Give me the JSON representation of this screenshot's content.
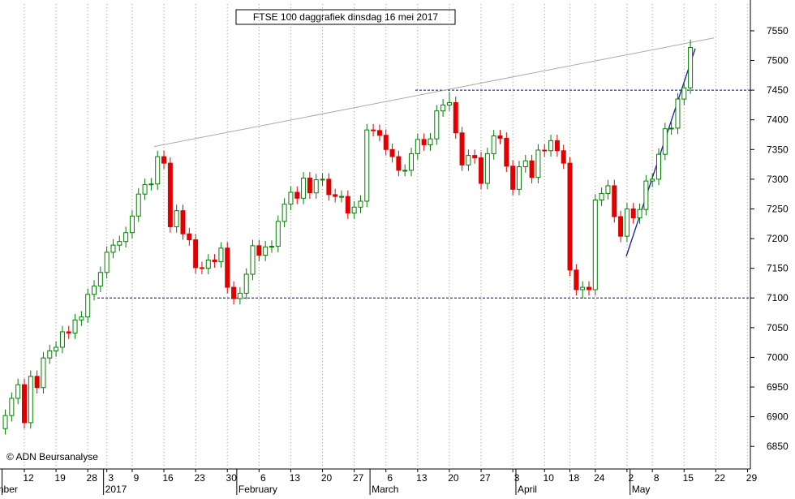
{
  "chart_data": {
    "type": "candlestick",
    "title": "FTSE 100 daggrafiek dinsdag 16 mei 2017",
    "copyright": "© ADN Beursanalyse",
    "categories": [
      null,
      null,
      null,
      "12",
      null,
      null,
      null,
      null,
      "19",
      null,
      null,
      null,
      null,
      "28",
      null,
      null,
      "3",
      null,
      null,
      null,
      "9",
      null,
      null,
      null,
      null,
      "16",
      null,
      null,
      null,
      null,
      "23",
      null,
      null,
      null,
      null,
      "30",
      null,
      null,
      null,
      null,
      "6",
      null,
      null,
      null,
      null,
      "13",
      null,
      null,
      null,
      null,
      "20",
      null,
      null,
      null,
      null,
      "27",
      null,
      null,
      null,
      null,
      "6",
      null,
      null,
      null,
      null,
      "13",
      null,
      null,
      null,
      null,
      "20",
      null,
      null,
      null,
      null,
      "27",
      null,
      null,
      null,
      null,
      "3",
      null,
      null,
      null,
      null,
      "10",
      null,
      null,
      null,
      "18",
      null,
      null,
      null,
      "24",
      null,
      null,
      null,
      null,
      "2",
      null,
      null,
      null,
      "8",
      null,
      null,
      null,
      null,
      "15",
      null,
      null,
      null,
      null,
      "22",
      null,
      null,
      null,
      null,
      "29"
    ],
    "months": [
      "mber",
      null,
      null,
      null,
      null,
      null,
      null,
      null,
      null,
      null,
      null,
      null,
      null,
      null,
      null,
      null,
      "2017",
      null,
      null,
      null,
      null,
      null,
      null,
      null,
      null,
      null,
      null,
      null,
      null,
      null,
      null,
      null,
      null,
      null,
      null,
      null,
      null,
      "February",
      null,
      null,
      null,
      null,
      null,
      null,
      null,
      null,
      null,
      null,
      null,
      null,
      null,
      null,
      null,
      null,
      null,
      null,
      null,
      null,
      "March",
      null,
      null,
      null,
      null,
      null,
      null,
      null,
      null,
      null,
      null,
      null,
      null,
      null,
      null,
      null,
      null,
      null,
      null,
      null,
      null,
      null,
      null,
      "April",
      null,
      null,
      null,
      null,
      null,
      null,
      null,
      null,
      null,
      null,
      null,
      null,
      null,
      null,
      null,
      null,
      null,
      "May",
      null,
      null,
      null,
      null,
      null,
      null,
      null,
      null,
      null,
      null,
      null,
      null,
      null,
      null,
      null,
      null,
      null,
      null,
      null
    ],
    "open": [
      6880,
      6902,
      6931,
      6954,
      6890,
      6968,
      6949,
      6999,
      7011,
      7017,
      7043,
      7041,
      7063,
      7068,
      7106,
      7120,
      7143,
      7177,
      7189,
      7195,
      7210,
      7238,
      7275,
      7291,
      7292,
      7338,
      7327,
      7220,
      7247,
      7208,
      7198,
      7151,
      7150,
      7164,
      7161,
      7184,
      7118,
      7099,
      7108,
      7140,
      7188,
      7172,
      7186,
      7187,
      7229,
      7258,
      7278,
      7268,
      7302,
      7277,
      7299,
      7300,
      7274,
      7271,
      7271,
      7243,
      7253,
      7263,
      7383,
      7382,
      7374,
      7350,
      7338,
      7315,
      7315,
      7343,
      7367,
      7358,
      7368,
      7415,
      7425,
      7429,
      7378,
      7324,
      7340,
      7336,
      7293,
      7343,
      7373,
      7369,
      7322,
      7283,
      7321,
      7331,
      7303,
      7349,
      7348,
      7365,
      7348,
      7327,
      7147,
      7114,
      7118,
      7114,
      7265,
      7276,
      7289,
      7237,
      7204,
      7250,
      7235,
      7249,
      7297,
      7300,
      7342,
      7385,
      7386,
      7435,
      7454,
      null,
      null,
      null,
      null,
      null,
      null,
      null,
      null,
      null
    ],
    "high": [
      6912,
      6941,
      6964,
      6964,
      6978,
      6978,
      7009,
      7021,
      7027,
      7053,
      7053,
      7073,
      7078,
      7116,
      7130,
      7153,
      7187,
      7199,
      7205,
      7220,
      7248,
      7285,
      7301,
      7302,
      7348,
      7348,
      7337,
      7257,
      7257,
      7218,
      7208,
      7161,
      7174,
      7174,
      7194,
      7194,
      7128,
      7118,
      7150,
      7198,
      7198,
      7196,
      7197,
      7239,
      7268,
      7288,
      7288,
      7312,
      7312,
      7309,
      7310,
      7310,
      7284,
      7281,
      7281,
      7263,
      7273,
      7393,
      7393,
      7392,
      7384,
      7360,
      7348,
      7325,
      7353,
      7377,
      7377,
      7378,
      7425,
      7435,
      7447,
      7439,
      7388,
      7350,
      7350,
      7346,
      7353,
      7383,
      7383,
      7379,
      7332,
      7331,
      7341,
      7341,
      7359,
      7359,
      7375,
      7375,
      7358,
      7337,
      7157,
      7128,
      7128,
      7275,
      7286,
      7299,
      7299,
      7247,
      7260,
      7260,
      7259,
      7307,
      7310,
      7352,
      7395,
      7396,
      7445,
      7464,
      7535,
      null,
      null,
      null,
      null,
      null,
      null,
      null,
      null,
      null
    ],
    "low": [
      6870,
      6892,
      6921,
      6880,
      6880,
      6939,
      6939,
      6989,
      7001,
      7007,
      7031,
      7031,
      7053,
      7058,
      7096,
      7110,
      7133,
      7167,
      7179,
      7185,
      7200,
      7228,
      7265,
      7281,
      7282,
      7317,
      7210,
      7210,
      7198,
      7188,
      7141,
      7140,
      7140,
      7151,
      7151,
      7108,
      7089,
      7089,
      7098,
      7130,
      7162,
      7162,
      7176,
      7177,
      7219,
      7248,
      7258,
      7258,
      7267,
      7267,
      7289,
      7264,
      7261,
      7261,
      7233,
      7233,
      7243,
      7253,
      7372,
      7364,
      7340,
      7328,
      7305,
      7305,
      7305,
      7333,
      7348,
      7348,
      7358,
      7405,
      7415,
      7368,
      7314,
      7314,
      7326,
      7283,
      7283,
      7333,
      7359,
      7312,
      7273,
      7273,
      7311,
      7293,
      7293,
      7338,
      7338,
      7338,
      7317,
      7137,
      7104,
      7099,
      7104,
      7104,
      7255,
      7266,
      7227,
      7194,
      7194,
      7225,
      7225,
      7239,
      7287,
      7290,
      7332,
      7375,
      7376,
      7425,
      7444,
      null,
      null,
      null,
      null,
      null,
      null,
      null,
      null,
      null
    ],
    "close": [
      6902,
      6931,
      6954,
      6890,
      6968,
      6949,
      6999,
      7011,
      7017,
      7043,
      7041,
      7063,
      7068,
      7106,
      7120,
      7143,
      7177,
      7189,
      7195,
      7210,
      7238,
      7275,
      7291,
      7292,
      7338,
      7327,
      7220,
      7247,
      7208,
      7198,
      7151,
      7150,
      7164,
      7161,
      7184,
      7118,
      7099,
      7108,
      7140,
      7188,
      7172,
      7186,
      7187,
      7229,
      7258,
      7278,
      7268,
      7302,
      7277,
      7299,
      7300,
      7274,
      7271,
      7271,
      7243,
      7253,
      7263,
      7383,
      7382,
      7374,
      7350,
      7338,
      7315,
      7315,
      7343,
      7367,
      7358,
      7368,
      7415,
      7425,
      7429,
      7378,
      7324,
      7340,
      7336,
      7293,
      7343,
      7373,
      7369,
      7322,
      7283,
      7321,
      7331,
      7303,
      7349,
      7348,
      7365,
      7348,
      7327,
      7147,
      7114,
      7118,
      7114,
      7265,
      7276,
      7289,
      7237,
      7204,
      7250,
      7235,
      7249,
      7297,
      7300,
      7342,
      7385,
      7386,
      7435,
      7454,
      7522,
      null,
      null,
      null,
      null,
      null,
      null,
      null,
      null,
      null
    ],
    "up_color": "#008000",
    "down_color": "#e00000",
    "ylim": [
      6812,
      7595
    ],
    "yticks": [
      6850,
      6900,
      6950,
      7000,
      7050,
      7100,
      7150,
      7200,
      7250,
      7300,
      7350,
      7400,
      7450,
      7500,
      7550
    ],
    "hlines": [
      7100,
      7450
    ],
    "hline_color": "#00008b",
    "trendlines": [
      {
        "color": "#aaaaaa",
        "from": 7355,
        "to": 7538
      },
      {
        "color": "#1a1aa0",
        "from": 7170,
        "to": 7520
      }
    ],
    "grid": true
  }
}
